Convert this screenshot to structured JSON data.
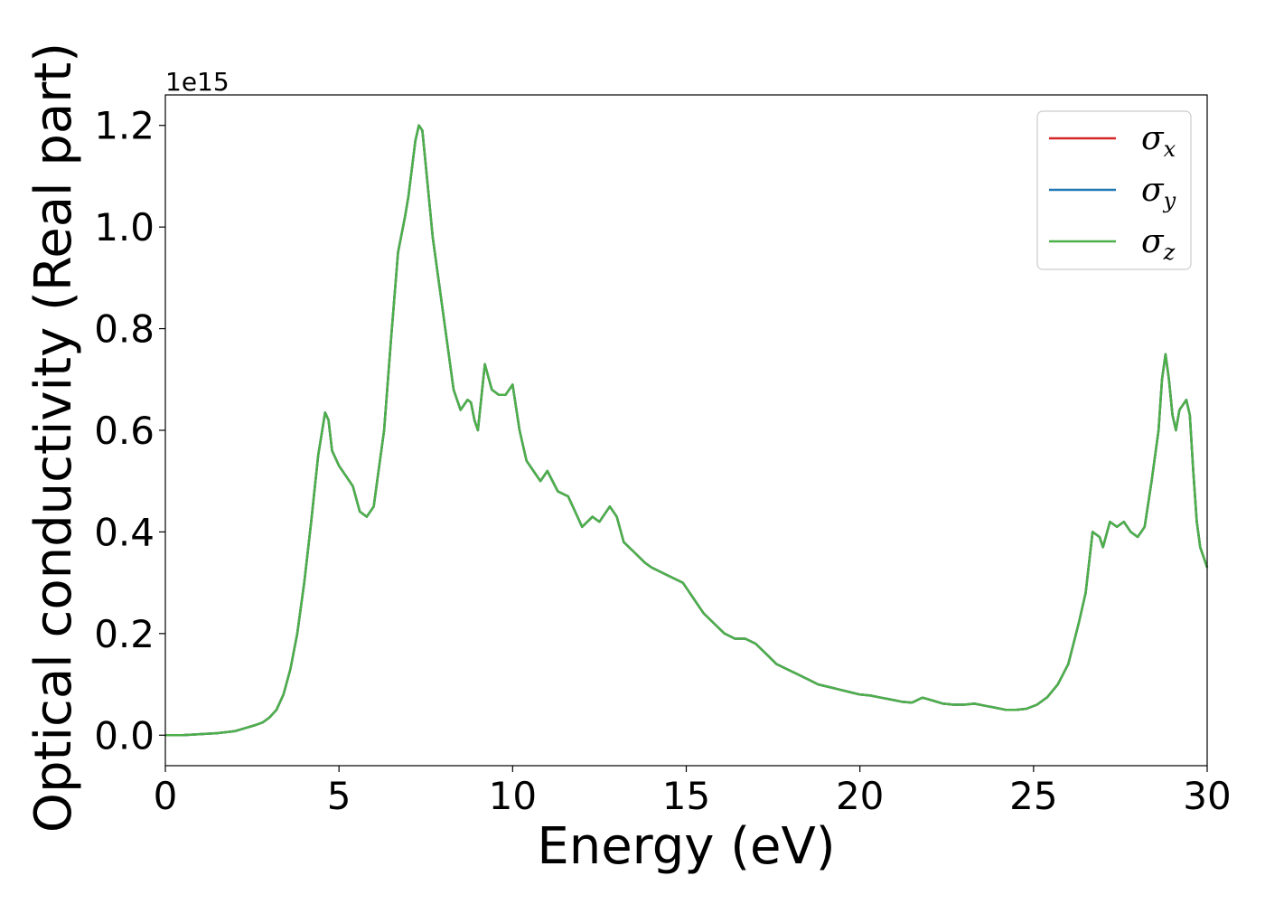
{
  "chart_data": {
    "type": "line",
    "xlabel": "Energy (eV)",
    "ylabel": "Optical conductivity (Real part)",
    "y_offset_label": "1e15",
    "xlim": [
      0,
      30
    ],
    "ylim": [
      -0.06,
      1.26
    ],
    "x_ticks": [
      0,
      5,
      10,
      15,
      20,
      25,
      30
    ],
    "x_tick_labels": [
      "0",
      "5",
      "10",
      "15",
      "20",
      "25",
      "30"
    ],
    "y_ticks": [
      0.0,
      0.2,
      0.4,
      0.6,
      0.8,
      1.0,
      1.2
    ],
    "y_tick_labels": [
      "0.0",
      "0.2",
      "0.4",
      "0.6",
      "0.8",
      "1.0",
      "1.2"
    ],
    "grid": false,
    "legend_position": "top-right",
    "x": [
      0,
      0.5,
      1.0,
      1.5,
      2.0,
      2.3,
      2.6,
      2.8,
      3.0,
      3.2,
      3.4,
      3.6,
      3.8,
      4.0,
      4.2,
      4.4,
      4.6,
      4.7,
      4.8,
      5.0,
      5.2,
      5.4,
      5.6,
      5.8,
      6.0,
      6.1,
      6.3,
      6.5,
      6.7,
      6.9,
      7.0,
      7.2,
      7.3,
      7.4,
      7.5,
      7.7,
      7.9,
      8.1,
      8.3,
      8.5,
      8.7,
      8.8,
      8.9,
      9.0,
      9.2,
      9.4,
      9.6,
      9.8,
      10.0,
      10.2,
      10.4,
      10.6,
      10.8,
      11.0,
      11.3,
      11.6,
      11.8,
      12.0,
      12.3,
      12.5,
      12.8,
      13.0,
      13.2,
      13.5,
      13.8,
      14.0,
      14.3,
      14.6,
      14.9,
      15.2,
      15.5,
      15.8,
      16.1,
      16.4,
      16.7,
      17.0,
      17.3,
      17.6,
      17.9,
      18.2,
      18.5,
      18.8,
      19.1,
      19.4,
      19.7,
      20.0,
      20.3,
      20.6,
      20.9,
      21.2,
      21.5,
      21.8,
      22.1,
      22.4,
      22.7,
      23.0,
      23.3,
      23.6,
      23.9,
      24.2,
      24.5,
      24.8,
      25.1,
      25.4,
      25.7,
      26.0,
      26.3,
      26.5,
      26.7,
      26.9,
      27.0,
      27.2,
      27.4,
      27.6,
      27.8,
      28.0,
      28.2,
      28.4,
      28.6,
      28.7,
      28.8,
      28.9,
      29.0,
      29.1,
      29.2,
      29.3,
      29.4,
      29.5,
      29.6,
      29.7,
      29.8,
      30.0
    ],
    "series": [
      {
        "name": "σ_x",
        "color": "#d62728",
        "values": [
          0.0,
          0.0,
          0.002,
          0.004,
          0.008,
          0.014,
          0.02,
          0.025,
          0.035,
          0.05,
          0.08,
          0.13,
          0.2,
          0.3,
          0.42,
          0.55,
          0.635,
          0.62,
          0.56,
          0.53,
          0.51,
          0.49,
          0.44,
          0.43,
          0.45,
          0.5,
          0.6,
          0.78,
          0.95,
          1.02,
          1.06,
          1.17,
          1.2,
          1.19,
          1.12,
          0.98,
          0.88,
          0.78,
          0.68,
          0.64,
          0.66,
          0.655,
          0.62,
          0.6,
          0.73,
          0.68,
          0.67,
          0.67,
          0.69,
          0.6,
          0.54,
          0.52,
          0.5,
          0.52,
          0.48,
          0.47,
          0.44,
          0.41,
          0.43,
          0.42,
          0.45,
          0.43,
          0.38,
          0.36,
          0.34,
          0.33,
          0.32,
          0.31,
          0.3,
          0.27,
          0.24,
          0.22,
          0.2,
          0.19,
          0.19,
          0.18,
          0.16,
          0.14,
          0.13,
          0.12,
          0.11,
          0.1,
          0.095,
          0.09,
          0.085,
          0.08,
          0.078,
          0.074,
          0.07,
          0.066,
          0.064,
          0.074,
          0.068,
          0.062,
          0.06,
          0.06,
          0.062,
          0.058,
          0.054,
          0.05,
          0.05,
          0.052,
          0.06,
          0.075,
          0.1,
          0.14,
          0.22,
          0.28,
          0.4,
          0.39,
          0.37,
          0.42,
          0.41,
          0.42,
          0.4,
          0.39,
          0.41,
          0.5,
          0.6,
          0.7,
          0.75,
          0.7,
          0.63,
          0.6,
          0.64,
          0.65,
          0.66,
          0.63,
          0.52,
          0.42,
          0.37,
          0.33
        ]
      },
      {
        "name": "σ_y",
        "color": "#1f77b4",
        "values": [
          0.0,
          0.0,
          0.002,
          0.004,
          0.008,
          0.014,
          0.02,
          0.025,
          0.035,
          0.05,
          0.08,
          0.13,
          0.2,
          0.3,
          0.42,
          0.55,
          0.635,
          0.62,
          0.56,
          0.53,
          0.51,
          0.49,
          0.44,
          0.43,
          0.45,
          0.5,
          0.6,
          0.78,
          0.95,
          1.02,
          1.06,
          1.17,
          1.2,
          1.19,
          1.12,
          0.98,
          0.88,
          0.78,
          0.68,
          0.64,
          0.66,
          0.655,
          0.62,
          0.6,
          0.73,
          0.68,
          0.67,
          0.67,
          0.69,
          0.6,
          0.54,
          0.52,
          0.5,
          0.52,
          0.48,
          0.47,
          0.44,
          0.41,
          0.43,
          0.42,
          0.45,
          0.43,
          0.38,
          0.36,
          0.34,
          0.33,
          0.32,
          0.31,
          0.3,
          0.27,
          0.24,
          0.22,
          0.2,
          0.19,
          0.19,
          0.18,
          0.16,
          0.14,
          0.13,
          0.12,
          0.11,
          0.1,
          0.095,
          0.09,
          0.085,
          0.08,
          0.078,
          0.074,
          0.07,
          0.066,
          0.064,
          0.074,
          0.068,
          0.062,
          0.06,
          0.06,
          0.062,
          0.058,
          0.054,
          0.05,
          0.05,
          0.052,
          0.06,
          0.075,
          0.1,
          0.14,
          0.22,
          0.28,
          0.4,
          0.39,
          0.37,
          0.42,
          0.41,
          0.42,
          0.4,
          0.39,
          0.41,
          0.5,
          0.6,
          0.7,
          0.75,
          0.7,
          0.63,
          0.6,
          0.64,
          0.65,
          0.66,
          0.63,
          0.52,
          0.42,
          0.37,
          0.33
        ]
      },
      {
        "name": "σ_z",
        "color": "#4daf4a",
        "values": [
          0.0,
          0.0,
          0.002,
          0.004,
          0.008,
          0.014,
          0.02,
          0.025,
          0.035,
          0.05,
          0.08,
          0.13,
          0.2,
          0.3,
          0.42,
          0.55,
          0.635,
          0.62,
          0.56,
          0.53,
          0.51,
          0.49,
          0.44,
          0.43,
          0.45,
          0.5,
          0.6,
          0.78,
          0.95,
          1.02,
          1.06,
          1.17,
          1.2,
          1.19,
          1.12,
          0.98,
          0.88,
          0.78,
          0.68,
          0.64,
          0.66,
          0.655,
          0.62,
          0.6,
          0.73,
          0.68,
          0.67,
          0.67,
          0.69,
          0.6,
          0.54,
          0.52,
          0.5,
          0.52,
          0.48,
          0.47,
          0.44,
          0.41,
          0.43,
          0.42,
          0.45,
          0.43,
          0.38,
          0.36,
          0.34,
          0.33,
          0.32,
          0.31,
          0.3,
          0.27,
          0.24,
          0.22,
          0.2,
          0.19,
          0.19,
          0.18,
          0.16,
          0.14,
          0.13,
          0.12,
          0.11,
          0.1,
          0.095,
          0.09,
          0.085,
          0.08,
          0.078,
          0.074,
          0.07,
          0.066,
          0.064,
          0.074,
          0.068,
          0.062,
          0.06,
          0.06,
          0.062,
          0.058,
          0.054,
          0.05,
          0.05,
          0.052,
          0.06,
          0.075,
          0.1,
          0.14,
          0.22,
          0.28,
          0.4,
          0.39,
          0.37,
          0.42,
          0.41,
          0.42,
          0.4,
          0.39,
          0.41,
          0.5,
          0.6,
          0.7,
          0.75,
          0.7,
          0.63,
          0.6,
          0.64,
          0.65,
          0.66,
          0.63,
          0.52,
          0.42,
          0.37,
          0.33
        ]
      }
    ],
    "legend": [
      {
        "symbol": "σ",
        "subscript": "x",
        "color": "#d62728"
      },
      {
        "symbol": "σ",
        "subscript": "y",
        "color": "#1f77b4"
      },
      {
        "symbol": "σ",
        "subscript": "z",
        "color": "#4daf4a"
      }
    ]
  }
}
